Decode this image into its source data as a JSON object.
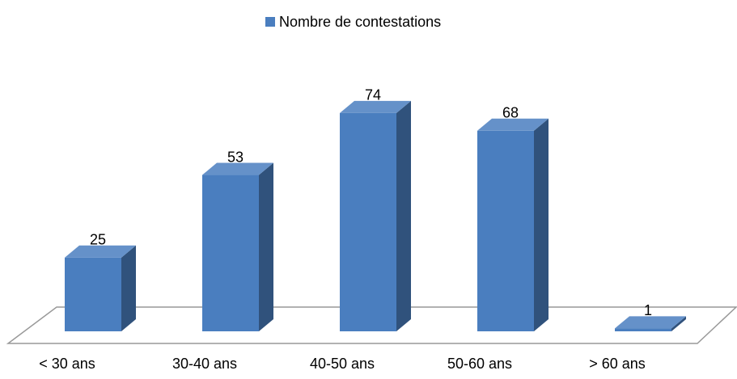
{
  "chart_data": {
    "type": "bar3d",
    "categories": [
      "< 30 ans",
      "30-40 ans",
      "40-50 ans",
      "50-60 ans",
      "> 60 ans"
    ],
    "series": [
      {
        "name": "Nombre de contestations",
        "color": "#4a7ebf",
        "values": [
          25,
          53,
          74,
          68,
          1
        ]
      }
    ],
    "legend": "top"
  }
}
